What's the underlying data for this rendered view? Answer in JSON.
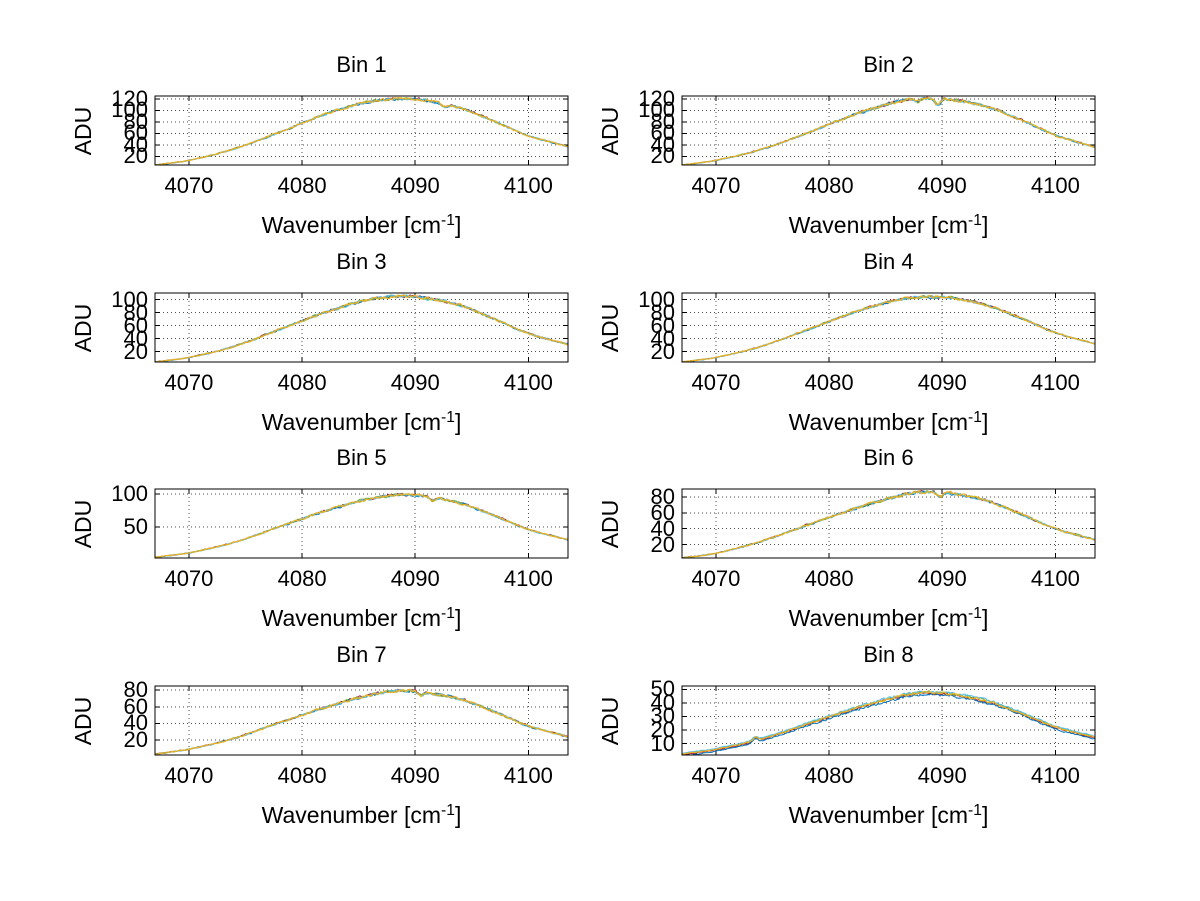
{
  "figure": {
    "background": "#FFFFFF"
  },
  "labels": {
    "ylabel": "ADU",
    "xlabel_prefix": "Wavenumber [cm",
    "xlabel_sup": "-1",
    "xlabel_suffix": "]"
  },
  "chart_data": {
    "type": "line",
    "layout": "4 rows x 2 columns of subplots, shared style",
    "title": "",
    "xlabel": "Wavenumber [cm^-1]",
    "ylabel": "ADU",
    "grid": "dotted, on",
    "legend": "none",
    "series_colors": [
      "#A2142F",
      "#0072BD",
      "#77AC30",
      "#4DBEEE",
      "#EDB120"
    ],
    "series_note": "several near-identical noisy spectra overplotted per axes; yellow trace drawn on top; traces visibly separate only in Bin 8",
    "x_samples": [
      4067,
      4070,
      4074,
      4078,
      4082,
      4085,
      4087,
      4089,
      4091,
      4094,
      4097,
      4100,
      4103.5
    ],
    "subplots": [
      {
        "title": "Bin 1",
        "xlim": [
          4067,
          4103.5
        ],
        "ylim": [
          5,
          125
        ],
        "xticks": [
          4070,
          4080,
          4090,
          4100
        ],
        "yticks": [
          20,
          40,
          60,
          80,
          100,
          120
        ],
        "y": [
          5,
          13,
          33,
          62,
          93,
          111,
          118,
          120.5,
          117,
          104,
          81,
          56,
          37
        ],
        "noise_amp": 1.8,
        "series_offsets": [
          0.25,
          -0.2,
          0.15,
          -0.1,
          0
        ],
        "spikes": [
          {
            "x": 4092.6,
            "dy": -5
          }
        ]
      },
      {
        "title": "Bin 2",
        "xlim": [
          4067,
          4103.5
        ],
        "ylim": [
          5,
          125
        ],
        "xticks": [
          4070,
          4080,
          4090,
          4100
        ],
        "yticks": [
          20,
          40,
          60,
          80,
          100,
          120
        ],
        "y": [
          5,
          13,
          32,
          60,
          91,
          110,
          119,
          121,
          118,
          106,
          83,
          57,
          36
        ],
        "noise_amp": 2.0,
        "series_offsets": [
          0.25,
          -0.2,
          0.15,
          -0.1,
          0
        ],
        "spikes": [
          {
            "x": 4087.8,
            "dy": -6
          },
          {
            "x": 4089.6,
            "dy": -11
          }
        ]
      },
      {
        "title": "Bin 3",
        "xlim": [
          4067,
          4103.5
        ],
        "ylim": [
          4,
          110
        ],
        "xticks": [
          4070,
          4080,
          4090,
          4100
        ],
        "yticks": [
          20,
          40,
          60,
          80,
          100
        ],
        "y": [
          4,
          11,
          28,
          54,
          80,
          96,
          103,
          105,
          102,
          91,
          70,
          48,
          31
        ],
        "noise_amp": 1.8,
        "series_offsets": [
          0.25,
          -0.2,
          0.15,
          -0.1,
          0
        ],
        "spikes": []
      },
      {
        "title": "Bin 4",
        "xlim": [
          4067,
          4103.5
        ],
        "ylim": [
          4,
          110
        ],
        "xticks": [
          4070,
          4080,
          4090,
          4100
        ],
        "yticks": [
          20,
          40,
          60,
          80,
          100
        ],
        "y": [
          4,
          11,
          28,
          53,
          79,
          95,
          102,
          104,
          102,
          91,
          71,
          49,
          32
        ],
        "noise_amp": 1.6,
        "series_offsets": [
          0.25,
          -0.2,
          0.15,
          -0.1,
          0
        ],
        "spikes": []
      },
      {
        "title": "Bin 5",
        "xlim": [
          4067,
          4103.5
        ],
        "ylim": [
          2,
          108
        ],
        "xticks": [
          4070,
          4080,
          4090,
          4100
        ],
        "yticks": [
          50,
          100
        ],
        "y": [
          3,
          10,
          26,
          50,
          74,
          89,
          96,
          99,
          97,
          86,
          67,
          46,
          30
        ],
        "noise_amp": 1.6,
        "series_offsets": [
          0.25,
          -0.2,
          0.15,
          -0.1,
          0
        ],
        "spikes": [
          {
            "x": 4091.5,
            "dy": -5
          }
        ]
      },
      {
        "title": "Bin 6",
        "xlim": [
          4067,
          4103.5
        ],
        "ylim": [
          3,
          90
        ],
        "xticks": [
          4070,
          4080,
          4090,
          4100
        ],
        "yticks": [
          20,
          40,
          60,
          80
        ],
        "y": [
          3,
          9,
          24,
          44,
          64,
          77,
          84,
          86.5,
          84,
          75,
          58,
          40,
          26
        ],
        "noise_amp": 1.5,
        "series_offsets": [
          0.25,
          -0.2,
          0.15,
          -0.1,
          0
        ],
        "spikes": [
          {
            "x": 4089.8,
            "dy": -6
          }
        ]
      },
      {
        "title": "Bin 7",
        "xlim": [
          4067,
          4103.5
        ],
        "ylim": [
          2,
          85
        ],
        "xticks": [
          4070,
          4080,
          4090,
          4100
        ],
        "yticks": [
          20,
          40,
          60,
          80
        ],
        "y": [
          3,
          9,
          22,
          41,
          59,
          71,
          77,
          79.5,
          77,
          69,
          54,
          37,
          24
        ],
        "noise_amp": 1.4,
        "series_offsets": [
          0.25,
          -0.2,
          0.15,
          -0.1,
          0
        ],
        "spikes": [
          {
            "x": 4090.5,
            "dy": -4
          }
        ]
      },
      {
        "title": "Bin 8",
        "xlim": [
          4067,
          4103.5
        ],
        "ylim": [
          1.5,
          52.5
        ],
        "xticks": [
          4070,
          4080,
          4090,
          4100
        ],
        "yticks": [
          10,
          20,
          30,
          40,
          50
        ],
        "y": [
          2,
          5.5,
          13,
          24,
          35,
          42,
          46,
          47.5,
          46,
          41,
          32,
          22,
          14.5
        ],
        "noise_amp": 0.8,
        "series_offsets": [
          -0.3,
          -1.2,
          0.5,
          1.0,
          0.2
        ],
        "spikes": [
          {
            "x": 4073.5,
            "dy": 2.5
          }
        ]
      }
    ]
  }
}
